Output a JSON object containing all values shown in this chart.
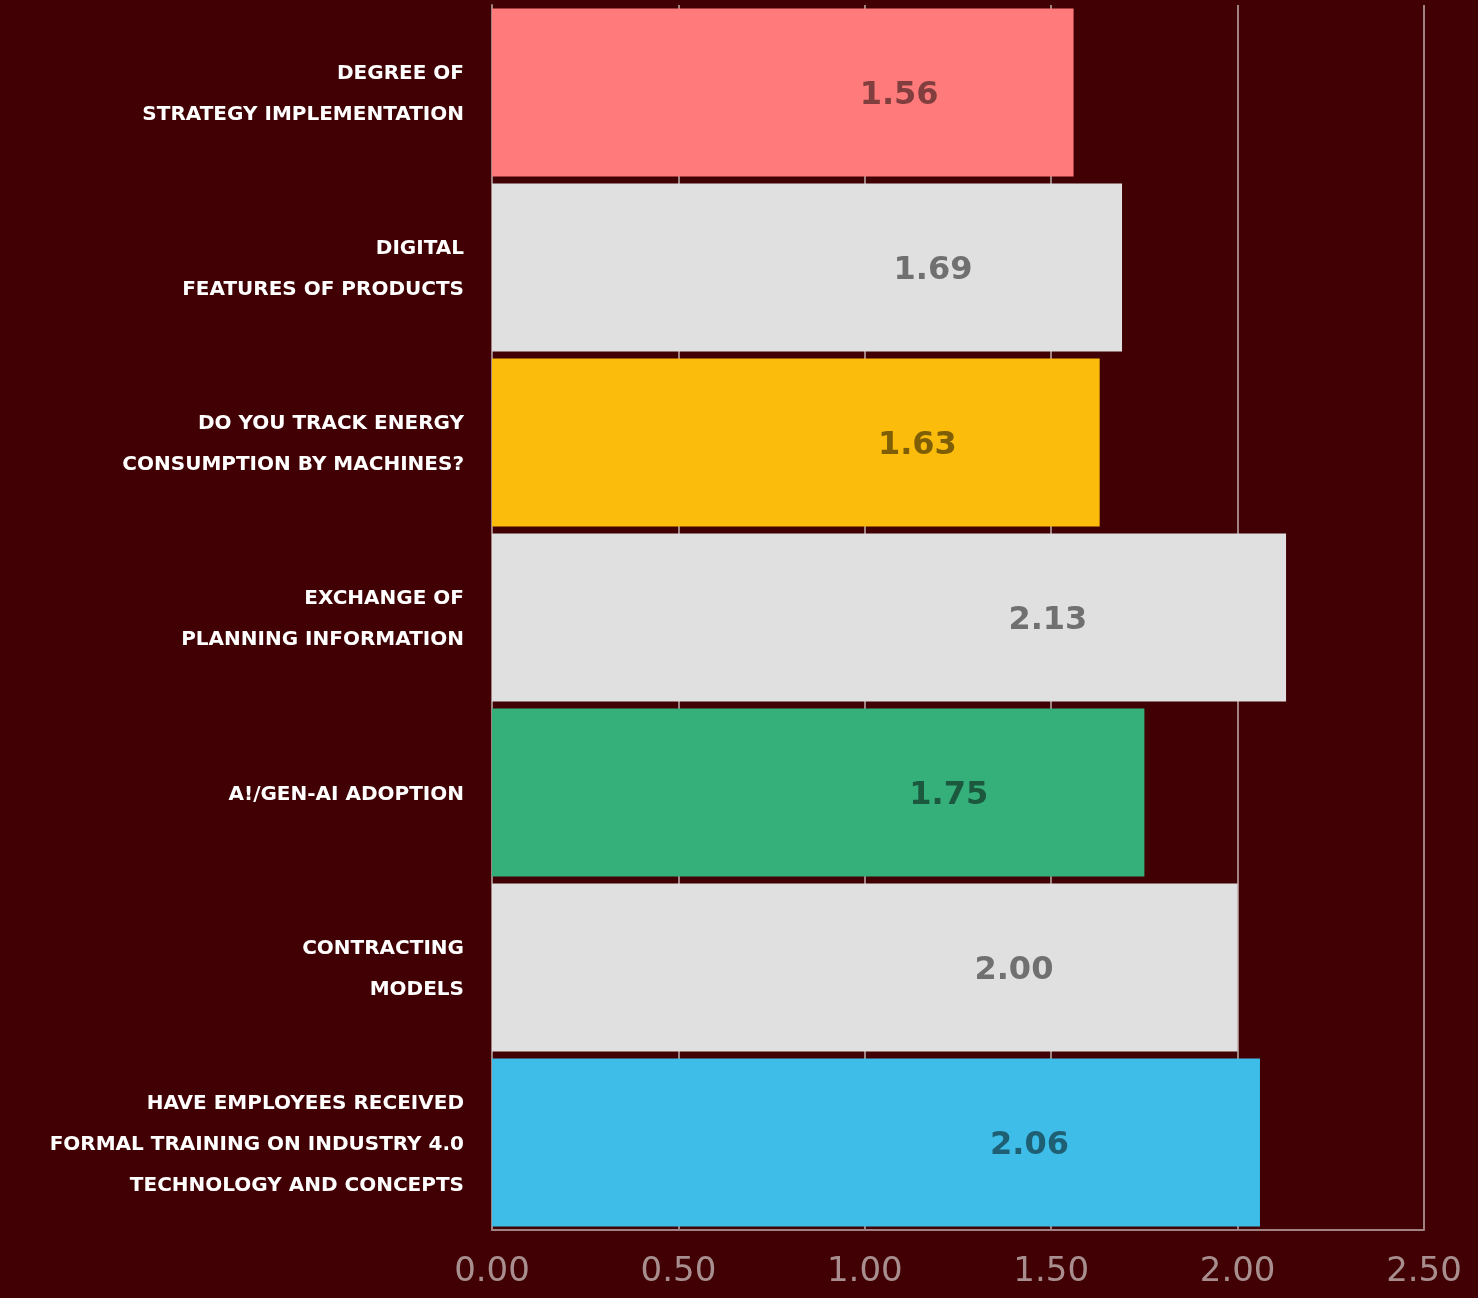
{
  "chart_data": {
    "type": "bar",
    "orientation": "horizontal",
    "categories": [
      "DEGREE OF\nSTRATEGY IMPLEMENTATION",
      "DIGITAL\nFEATURES OF PRODUCTS",
      "DO YOU TRACK ENERGY\nCONSUMPTION BY MACHINES?",
      "EXCHANGE OF\nPLANNING INFORMATION",
      "A!/GEN-AI ADOPTION",
      "CONTRACTING\nMODELS",
      "HAVE EMPLOYEES RECEIVED\nFORMAL TRAINING ON INDUSTRY 4.0\nTECHNOLOGY AND CONCEPTS"
    ],
    "values": [
      1.56,
      1.69,
      1.63,
      2.13,
      1.75,
      2.0,
      2.06
    ],
    "colors": [
      "#ff7b7b",
      "#e0e0e0",
      "#fbbc0c",
      "#e0e0e0",
      "#35b07b",
      "#e0e0e0",
      "#3dbde8"
    ],
    "value_labels": [
      "1.56",
      "1.69",
      "1.63",
      "2.13",
      "1.75",
      "2.00",
      "2.06"
    ],
    "xlim": [
      0,
      2.5
    ],
    "xticks": [
      {
        "value": 0,
        "label": "0.00"
      },
      {
        "value": 0.5,
        "label": "0.50"
      },
      {
        "value": 1,
        "label": "1.00"
      },
      {
        "value": 1.5,
        "label": "1.50"
      },
      {
        "value": 2,
        "label": "2.00"
      },
      {
        "value": 2.5,
        "label": "2.50"
      }
    ],
    "grid": "x"
  }
}
